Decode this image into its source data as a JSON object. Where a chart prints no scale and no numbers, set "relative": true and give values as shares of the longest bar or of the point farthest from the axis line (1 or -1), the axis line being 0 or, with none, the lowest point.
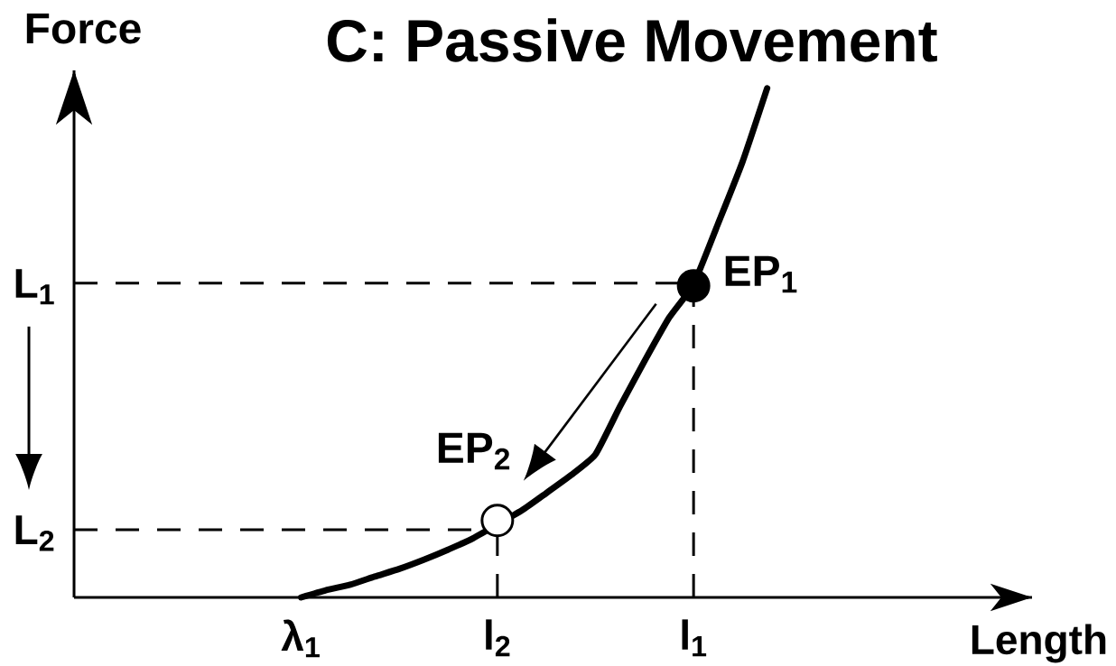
{
  "chart_data": {
    "type": "line",
    "title": "C: Passive Movement",
    "xlabel": "Length",
    "ylabel": "Force",
    "relative": true,
    "marker": "circle",
    "categories": [
      "λ$_{1}$",
      null,
      null,
      null,
      null,
      null,
      null,
      null,
      "l$_{2}$",
      null,
      null,
      null,
      null,
      null,
      null,
      null,
      "l$_{1}$",
      null,
      null,
      null
    ],
    "series": [
      {
        "type": "lollipop",
        "name": "EP$_{1}$",
        "color": "#000000",
        "line_style": "dashed",
        "x": [
          "l$_{1}$"
        ],
        "values": [
          0.612
        ]
      },
      {
        "type": "lollipop",
        "name": "EP$_{2}$",
        "color": "#ffffff",
        "line_style": "dashed",
        "x": [
          "l$_{2}$"
        ],
        "values": [
          0.151
        ]
      },
      {
        "color": "#000000",
        "marker": "none",
        "values": [
          0,
          0.014,
          0.025,
          0.041,
          0.056,
          0.074,
          0.094,
          0.116,
          null,
          0.171,
          0.205,
          0.24,
          0.281,
          0.375,
          0.464,
          0.549,
          0.615,
          0.734,
          0.856,
          1
        ]
      }
    ],
    "ref_lines": [
      {
        "axis": "y",
        "value": 0.617,
        "label": "L$_{1}$",
        "color": "#000000",
        "line_style": "dashed"
      },
      {
        "axis": "y",
        "value": 0.133,
        "label": "L$_{2}$",
        "color": "#000000",
        "line_style": "dashed"
      }
    ]
  }
}
